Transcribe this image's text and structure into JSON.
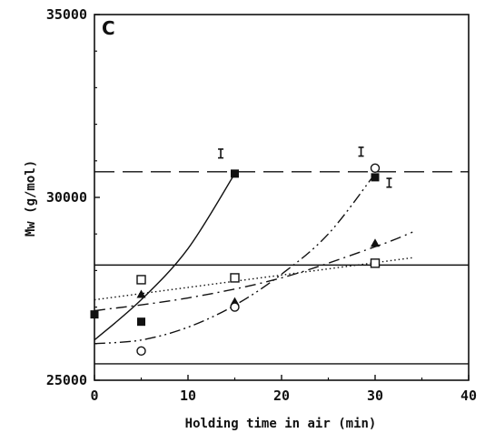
{
  "chart_data": {
    "type": "scatter",
    "panel_label": "C",
    "xlabel": "Holding time in air (min)",
    "ylabel": "Mw (g/mol)",
    "xlim": [
      0,
      40
    ],
    "ylim": [
      25000,
      35000
    ],
    "x_ticks": [
      "0",
      "10",
      "20",
      "30",
      "40"
    ],
    "y_ticks": [
      "25000",
      "30000",
      "35000"
    ],
    "grid": false,
    "series": [
      {
        "marker": "filled-square",
        "points": [
          [
            0,
            26800
          ],
          [
            5,
            26600
          ],
          [
            15,
            30650
          ],
          [
            30,
            30550
          ]
        ]
      },
      {
        "marker": "open-square",
        "points": [
          [
            5,
            27750
          ],
          [
            15,
            27800
          ],
          [
            30,
            28200
          ]
        ]
      },
      {
        "marker": "filled-triangle",
        "points": [
          [
            5,
            27350
          ],
          [
            15,
            27150
          ],
          [
            30,
            28750
          ]
        ]
      },
      {
        "marker": "open-circle",
        "points": [
          [
            5,
            25800
          ],
          [
            15,
            27000
          ],
          [
            30,
            30800
          ]
        ]
      }
    ],
    "fit_curves": [
      {
        "style": "solid",
        "points": [
          [
            0,
            26100
          ],
          [
            5,
            27200
          ],
          [
            10,
            28600
          ],
          [
            15,
            30650
          ]
        ]
      },
      {
        "style": "dash-dot-dot",
        "points": [
          [
            0,
            26000
          ],
          [
            5,
            26100
          ],
          [
            10,
            26450
          ],
          [
            15,
            27050
          ],
          [
            20,
            27900
          ],
          [
            25,
            29000
          ],
          [
            30,
            30650
          ]
        ]
      },
      {
        "style": "dash-dot",
        "points": [
          [
            0,
            26900
          ],
          [
            10,
            27250
          ],
          [
            20,
            27800
          ],
          [
            30,
            28650
          ],
          [
            34,
            29050
          ]
        ]
      },
      {
        "style": "dotted",
        "points": [
          [
            0,
            27200
          ],
          [
            34,
            28350
          ]
        ]
      }
    ],
    "reference_lines": [
      {
        "style": "long-dash",
        "y": 30700
      },
      {
        "style": "solid",
        "y": 28150
      },
      {
        "style": "solid",
        "y": 25450
      }
    ],
    "error_bars": [
      {
        "x": 13.5,
        "y": 31200,
        "half": 120
      },
      {
        "x": 28.5,
        "y": 31250,
        "half": 120
      },
      {
        "x": 31.5,
        "y": 30400,
        "half": 120
      }
    ]
  }
}
